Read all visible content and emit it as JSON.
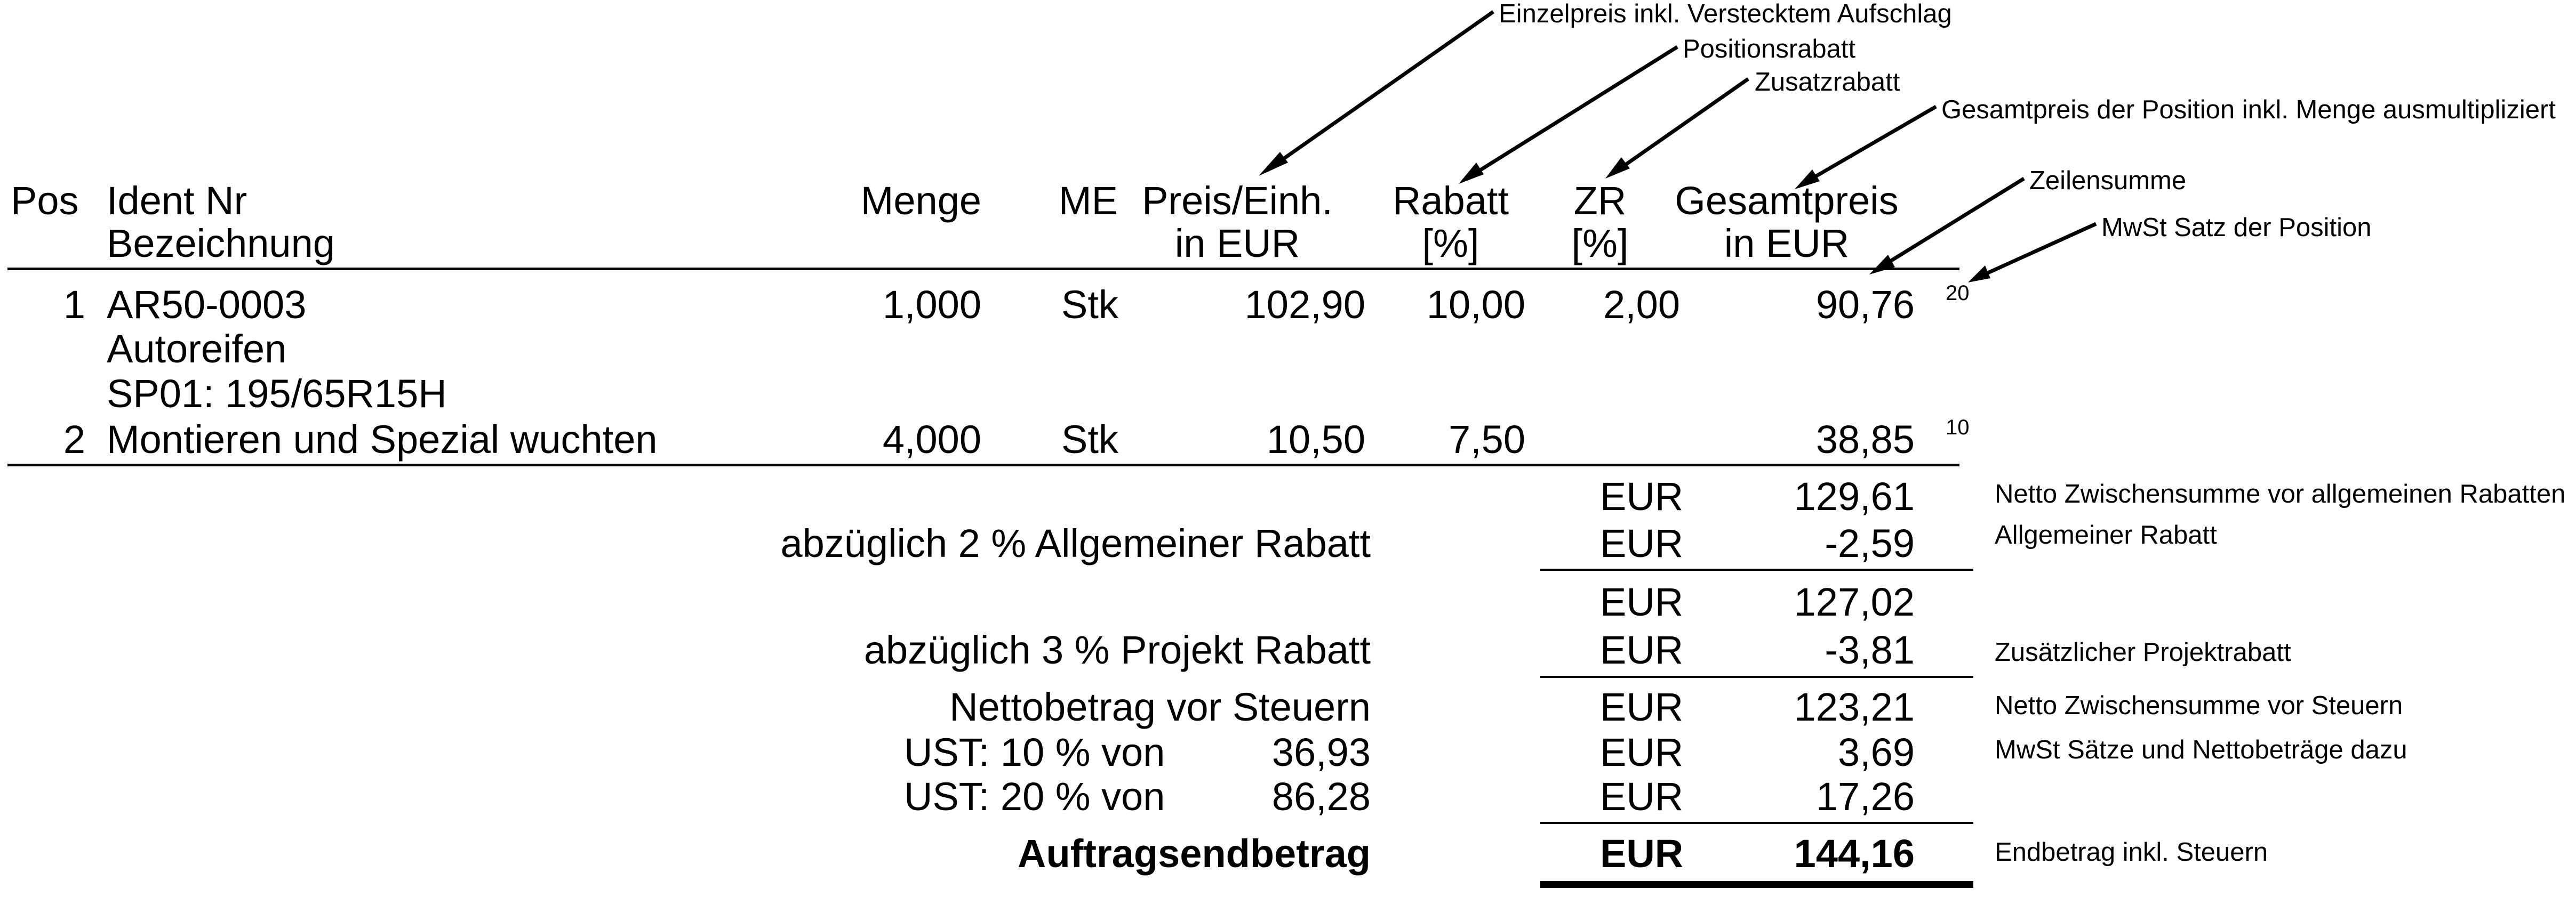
{
  "header": {
    "pos": "Pos",
    "ident_nr": "Ident Nr",
    "bezeichnung": "Bezeichnung",
    "menge": "Menge",
    "me": "ME",
    "preis_l1": "Preis/Einh.",
    "preis_l2": "in EUR",
    "rabatt_l1": "Rabatt",
    "rabatt_l2": "[%]",
    "zr_l1": "ZR",
    "zr_l2": "[%]",
    "gesamt_l1": "Gesamtpreis",
    "gesamt_l2": "in EUR"
  },
  "items": [
    {
      "pos": "1",
      "ident": "AR50-0003",
      "desc_1": "Autoreifen",
      "desc_2": "SP01: 195/65R15H",
      "menge": "1,000",
      "me": "Stk",
      "preis": "102,90",
      "rabatt": "10,00",
      "zr": "2,00",
      "gesamt": "90,76",
      "mwst": "20"
    },
    {
      "pos": "2",
      "ident": "Montieren und Spezial wuchten",
      "menge": "4,000",
      "me": "Stk",
      "preis": "10,50",
      "rabatt": "7,50",
      "gesamt": "38,85",
      "mwst": "10"
    }
  ],
  "totals": {
    "currency": "EUR",
    "netto_zwischensumme": "129,61",
    "allg_rabatt_label": "abzüglich 2 % Allgemeiner Rabatt",
    "allg_rabatt_value": "-2,59",
    "zwischensumme_2": "127,02",
    "projekt_rabatt_label": "abzüglich 3 % Projekt Rabatt",
    "projekt_rabatt_value": "-3,81",
    "netto_label": "Nettobetrag vor Steuern",
    "netto_value": "123,21",
    "ust_10_label": "UST: 10 % von",
    "ust_10_base": "36,93",
    "ust_10_value": "3,69",
    "ust_20_label": "UST: 20 % von",
    "ust_20_base": "86,28",
    "ust_20_value": "17,26",
    "endbetrag_label": "Auftragsendbetrag",
    "endbetrag_value": "144,16"
  },
  "annotations": {
    "einzelpreis": "Einzelpreis inkl. Verstecktem Aufschlag",
    "positionsrabatt": "Positionsrabatt",
    "zusatzrabatt": "Zusatzrabatt",
    "gesamtpreis": "Gesamtpreis der Position inkl. Menge ausmultipliziert",
    "zeilensumme": "Zeilensumme",
    "mwst_satz": "MwSt Satz der Position",
    "netto_vor_rabatten": "Netto Zwischensumme vor allgemeinen Rabatten",
    "allg_rabatt": "Allgemeiner Rabatt",
    "projektrabatt": "Zusätzlicher Projektrabatt",
    "netto_vor_steuern": "Netto Zwischensumme vor Steuern",
    "mwst_saetze": "MwSt Sätze und Nettobeträge dazu",
    "endbetrag": "Endbetrag inkl. Steuern"
  }
}
